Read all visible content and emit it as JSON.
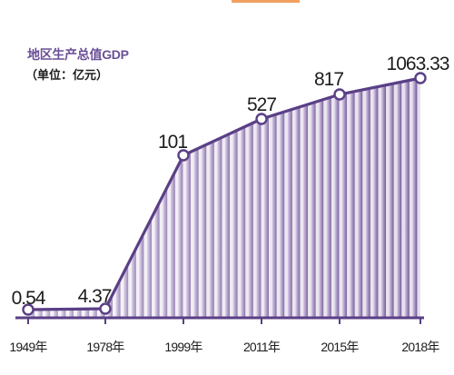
{
  "chart_data": {
    "type": "area",
    "title": "地区生产总值GDP",
    "subtitle": "（单位：亿元）",
    "categories": [
      "1949年",
      "1978年",
      "1999年",
      "2011年",
      "2015年",
      "2018年"
    ],
    "x": [
      1949,
      1978,
      1999,
      2011,
      2015,
      2018
    ],
    "values": [
      0.54,
      4.37,
      101,
      527,
      817,
      1063.33
    ],
    "value_labels": [
      "0.54",
      "4.37",
      "101",
      "527",
      "817",
      "1063.33"
    ],
    "xlabel": "",
    "ylabel": "",
    "grid": false,
    "legend": "none"
  },
  "colors": {
    "line": "#5a3f86",
    "marker_fill": "#ffffff",
    "title_text": "#6a4f96",
    "stripe_light": "#d9cce8",
    "stripe_dark": "#6f5495",
    "axis": "#5a3f86",
    "label_text": "#1c1c1c",
    "accent_bar": "#f0a060"
  }
}
